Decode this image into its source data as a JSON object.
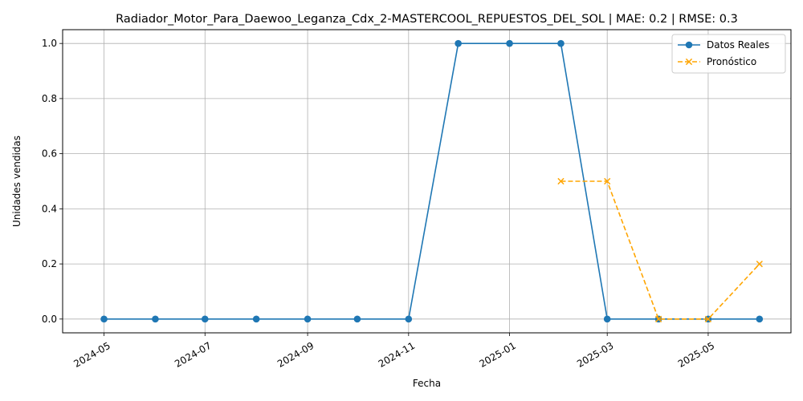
{
  "chart_data": {
    "type": "line",
    "title": "Radiador_Motor_Para_Daewoo_Leganza_Cdx_2-MASTERCOOL_REPUESTOS_DEL_SOL | MAE: 0.2 | RMSE: 0.3",
    "xlabel": "Fecha",
    "ylabel": "Unidades vendidas",
    "xlim": [
      "2024-04-06",
      "2025-06-20"
    ],
    "ylim": [
      -0.05,
      1.05
    ],
    "x_ticks": [
      "2024-05",
      "2024-07",
      "2024-09",
      "2024-11",
      "2025-01",
      "2025-03",
      "2025-05"
    ],
    "y_ticks": [
      "0.0",
      "0.2",
      "0.4",
      "0.6",
      "0.8",
      "1.0"
    ],
    "y_tick_values": [
      0.0,
      0.2,
      0.4,
      0.6,
      0.8,
      1.0
    ],
    "grid": true,
    "legend_position": "top-right",
    "series": [
      {
        "name": "Datos Reales",
        "color": "#1f77b4",
        "style": "solid",
        "marker": "circle",
        "x": [
          "2024-05-01",
          "2024-06-01",
          "2024-07-01",
          "2024-08-01",
          "2024-09-01",
          "2024-10-01",
          "2024-11-01",
          "2024-12-01",
          "2025-01-01",
          "2025-02-01",
          "2025-03-01",
          "2025-04-01",
          "2025-05-01",
          "2025-06-01"
        ],
        "values": [
          0,
          0,
          0,
          0,
          0,
          0,
          0,
          1,
          1,
          1,
          0,
          0,
          0,
          0
        ]
      },
      {
        "name": "Pronóstico",
        "color": "#ffa500",
        "style": "dashed",
        "marker": "x",
        "x": [
          "2025-02-01",
          "2025-03-01",
          "2025-04-01",
          "2025-05-01",
          "2025-06-01"
        ],
        "values": [
          0.5,
          0.5,
          0,
          0,
          0.2
        ]
      }
    ]
  }
}
